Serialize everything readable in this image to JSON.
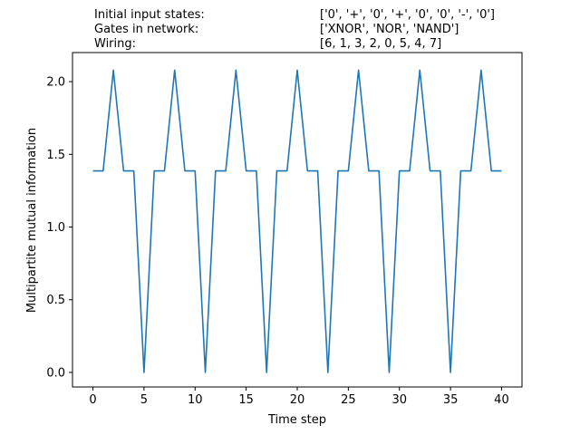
{
  "info": {
    "rows": [
      {
        "label": "Initial input states:",
        "value": "['0', '+', '0', '+', '0', '0', '-', '0']"
      },
      {
        "label": "Gates in network:",
        "value": "['XNOR', 'NOR', 'NAND']"
      },
      {
        "label": "Wiring:",
        "value": "[6, 1, 3, 2, 0, 5, 4, 7]"
      }
    ]
  },
  "chart_data": {
    "type": "line",
    "xlabel": "Time step",
    "ylabel": "Multipartite mutual information",
    "xlim": [
      -2,
      42
    ],
    "ylim": [
      -0.1,
      2.2
    ],
    "xticks": [
      0,
      5,
      10,
      15,
      20,
      25,
      30,
      35,
      40
    ],
    "yticks": [
      0.0,
      0.5,
      1.0,
      1.5,
      2.0
    ],
    "grid": false,
    "line_color": "#1f77b4",
    "x": [
      0,
      1,
      2,
      3,
      4,
      5,
      6,
      7,
      8,
      9,
      10,
      11,
      12,
      13,
      14,
      15,
      16,
      17,
      18,
      19,
      20,
      21,
      22,
      23,
      24,
      25,
      26,
      27,
      28,
      29,
      30,
      31,
      32,
      33,
      34,
      35,
      36,
      37,
      38,
      39,
      40
    ],
    "y": [
      1.386,
      1.386,
      2.079,
      1.386,
      1.386,
      0.0,
      1.386,
      1.386,
      2.079,
      1.386,
      1.386,
      0.0,
      1.386,
      1.386,
      2.079,
      1.386,
      1.386,
      0.0,
      1.386,
      1.386,
      2.079,
      1.386,
      1.386,
      0.0,
      1.386,
      1.386,
      2.079,
      1.386,
      1.386,
      0.0,
      1.386,
      1.386,
      2.079,
      1.386,
      1.386,
      0.0,
      1.386,
      1.386,
      2.079,
      1.386,
      1.386
    ]
  }
}
